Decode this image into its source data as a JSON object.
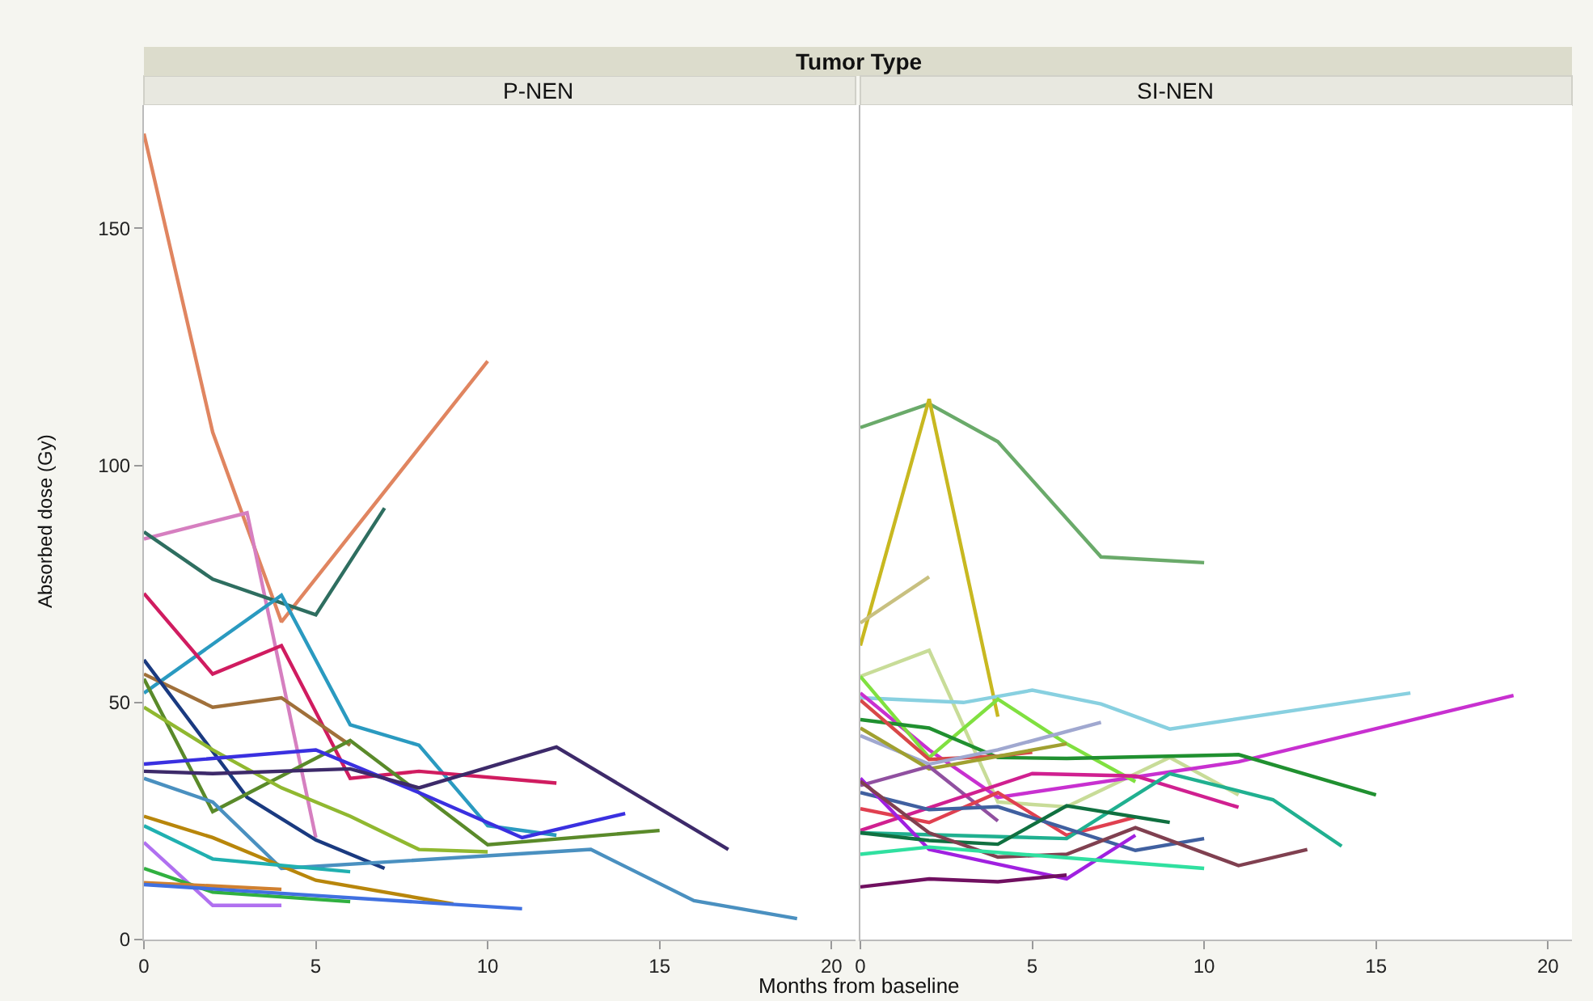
{
  "chart_data": [
    {
      "type": "line",
      "title": "P-NEN",
      "annotations": [
        "Tumor Type"
      ],
      "xlabel": "Months from baseline",
      "ylabel": "Absorbed dose (Gy)",
      "xlim": [
        0,
        20.7
      ],
      "ylim": [
        0,
        176
      ],
      "xticks": [
        0,
        5,
        10,
        15,
        20
      ],
      "yticks": [
        0,
        50,
        100,
        150
      ],
      "series": [
        {
          "color": "#e08560",
          "x": [
            0,
            2,
            4,
            10
          ],
          "values": [
            170,
            107,
            67,
            122
          ]
        },
        {
          "color": "#d67fc0",
          "x": [
            0,
            3,
            5
          ],
          "values": [
            84.5,
            90,
            21.5
          ]
        },
        {
          "color": "#2e6e60",
          "x": [
            0,
            2,
            5,
            7
          ],
          "values": [
            86,
            76,
            68.5,
            91
          ]
        },
        {
          "color": "#2a9ac0",
          "x": [
            0,
            4,
            6,
            8,
            10,
            12
          ],
          "values": [
            52,
            72.6,
            45.3,
            41,
            24,
            22
          ]
        },
        {
          "color": "#d01c60",
          "x": [
            0,
            2,
            4,
            6,
            8,
            12
          ],
          "values": [
            73,
            56,
            62,
            34,
            35.5,
            33
          ]
        },
        {
          "color": "#a0703a",
          "x": [
            0,
            2,
            4,
            6
          ],
          "values": [
            56,
            49,
            51,
            41
          ]
        },
        {
          "color": "#1a3a80",
          "x": [
            0,
            3,
            5,
            7
          ],
          "values": [
            59,
            30,
            21,
            15
          ]
        },
        {
          "color": "#5a8a2a",
          "x": [
            0,
            2,
            6,
            10,
            15
          ],
          "values": [
            55,
            27,
            42,
            20,
            23
          ]
        },
        {
          "color": "#90b830",
          "x": [
            0,
            2,
            4,
            6,
            8,
            10
          ],
          "values": [
            49,
            40,
            32,
            26,
            19,
            18.5
          ]
        },
        {
          "color": "#3a30e0",
          "x": [
            0,
            5,
            8,
            11,
            14
          ],
          "values": [
            37,
            40,
            31,
            21.5,
            26.6
          ]
        },
        {
          "color": "#3d2a6a",
          "x": [
            0,
            2,
            6,
            8,
            12,
            17
          ],
          "values": [
            35.5,
            35,
            36,
            32,
            40.6,
            19
          ]
        },
        {
          "color": "#4a90c0",
          "x": [
            0,
            2,
            4,
            13,
            16,
            19
          ],
          "values": [
            34,
            29,
            15,
            19,
            8.2,
            4.4
          ]
        },
        {
          "color": "#b8860b",
          "x": [
            0,
            2,
            5,
            9
          ],
          "values": [
            26,
            21.5,
            12.5,
            7.5
          ]
        },
        {
          "color": "#20b0b0",
          "x": [
            0,
            2,
            6
          ],
          "values": [
            24,
            17,
            14.3
          ]
        },
        {
          "color": "#b070f0",
          "x": [
            0,
            2,
            4
          ],
          "values": [
            20.5,
            7.2,
            7.2
          ]
        },
        {
          "color": "#30b040",
          "x": [
            0,
            2,
            6
          ],
          "values": [
            15,
            10,
            8
          ]
        },
        {
          "color": "#d08030",
          "x": [
            0,
            4
          ],
          "values": [
            12,
            10.6
          ]
        },
        {
          "color": "#4070e0",
          "x": [
            0,
            11
          ],
          "values": [
            11.6,
            6.5
          ]
        }
      ]
    },
    {
      "type": "line",
      "title": "SI-NEN",
      "xlim": [
        0,
        20.7
      ],
      "ylim": [
        0,
        176
      ],
      "xticks": [
        0,
        5,
        10,
        15,
        20
      ],
      "tick_labels": "x",
      "series": [
        {
          "color": "#6aaa6a",
          "x": [
            0,
            2,
            4,
            7,
            10
          ],
          "values": [
            108,
            113,
            105,
            80.7,
            79.5
          ]
        },
        {
          "color": "#c8b820",
          "x": [
            0,
            2,
            4
          ],
          "values": [
            62,
            114,
            47
          ]
        },
        {
          "color": "#c8c080",
          "x": [
            0,
            2
          ],
          "values": [
            66.8,
            76.5
          ]
        },
        {
          "color": "#c8dc98",
          "x": [
            0,
            2,
            4,
            6,
            9,
            11
          ],
          "values": [
            55.5,
            61,
            29,
            28,
            38.4,
            30.5
          ]
        },
        {
          "color": "#88d0e0",
          "x": [
            0,
            3,
            5,
            7,
            9,
            16
          ],
          "values": [
            51,
            50,
            52.6,
            49.7,
            44.4,
            52
          ]
        },
        {
          "color": "#c830d0",
          "x": [
            0,
            2,
            4,
            11,
            19
          ],
          "values": [
            52,
            40,
            30,
            37.5,
            51.5
          ]
        },
        {
          "color": "#80e040",
          "x": [
            0,
            2,
            4,
            6,
            8
          ],
          "values": [
            55.5,
            38.4,
            50.7,
            41.3,
            33.3
          ]
        },
        {
          "color": "#209030",
          "x": [
            0,
            2,
            4,
            6,
            11,
            15
          ],
          "values": [
            46.4,
            44.6,
            38.4,
            38.2,
            39,
            30.5
          ]
        },
        {
          "color": "#d84848",
          "x": [
            0,
            2,
            4,
            5
          ],
          "values": [
            50.5,
            38,
            38.7,
            39.5
          ]
        },
        {
          "color": "#a0a8d0",
          "x": [
            0,
            2,
            4,
            7
          ],
          "values": [
            43,
            37,
            40,
            45.8
          ]
        },
        {
          "color": "#a0a030",
          "x": [
            0,
            2,
            6
          ],
          "values": [
            44.6,
            36,
            41.3
          ]
        },
        {
          "color": "#9050a0",
          "x": [
            0,
            2,
            4
          ],
          "values": [
            32.5,
            36.5,
            25
          ]
        },
        {
          "color": "#d02090",
          "x": [
            0,
            5,
            8,
            11
          ],
          "values": [
            23,
            35,
            34.5,
            27.9
          ]
        },
        {
          "color": "#e04050",
          "x": [
            0,
            2,
            4,
            6,
            8
          ],
          "values": [
            27.6,
            24.7,
            31,
            22,
            25.8
          ]
        },
        {
          "color": "#20b090",
          "x": [
            0,
            6,
            9,
            12,
            14
          ],
          "values": [
            22.5,
            21.3,
            35,
            29.5,
            19.7
          ]
        },
        {
          "color": "#4060a0",
          "x": [
            0,
            2,
            4,
            8,
            10
          ],
          "values": [
            31,
            27.4,
            28,
            18.8,
            21.3
          ]
        },
        {
          "color": "#a020e0",
          "x": [
            0,
            2,
            6,
            8
          ],
          "values": [
            34,
            19,
            12.8,
            22
          ]
        },
        {
          "color": "#107040",
          "x": [
            0,
            2,
            4,
            6,
            9
          ],
          "values": [
            22.5,
            20.9,
            20.1,
            28.2,
            24.7
          ]
        },
        {
          "color": "#804050",
          "x": [
            0,
            2,
            4,
            6,
            8,
            11,
            13
          ],
          "values": [
            33.4,
            22.5,
            17.4,
            18,
            23.6,
            15.6,
            19
          ]
        },
        {
          "color": "#30e0a0",
          "x": [
            0,
            2,
            10
          ],
          "values": [
            18,
            19.5,
            15
          ]
        },
        {
          "color": "#701060",
          "x": [
            0,
            2,
            4,
            6
          ],
          "values": [
            11.1,
            12.8,
            12.2,
            13.6
          ]
        }
      ]
    }
  ]
}
